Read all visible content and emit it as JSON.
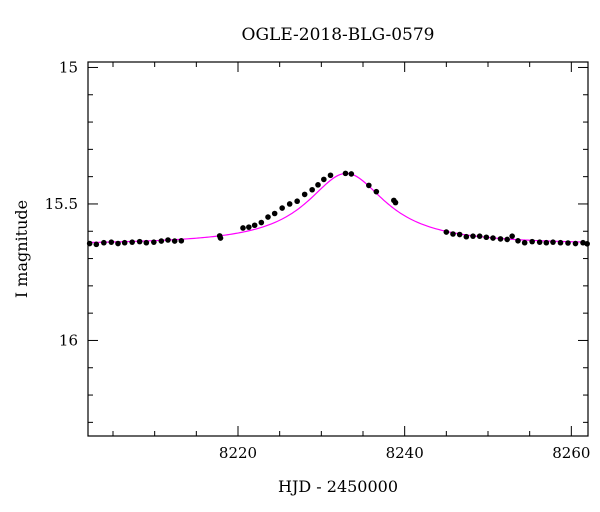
{
  "chart_data": {
    "type": "scatter",
    "title": "OGLE-2018-BLG-0579",
    "xlabel": "HJD - 2450000",
    "ylabel": "I magnitude",
    "xlim": [
      8202,
      8262
    ],
    "ylim": [
      16.35,
      14.98
    ],
    "y_inverted": true,
    "grid": false,
    "x_ticks": [
      8220,
      8240,
      8260
    ],
    "y_ticks": [
      15,
      15.5,
      16
    ],
    "x_minor_step": 5,
    "y_minor_step": 0.1,
    "colors": {
      "points": "#000000",
      "model": "#ff00ff"
    },
    "series": [
      {
        "kind": "points",
        "x": [
          8202.2,
          8203.0,
          8203.9,
          8204.8,
          8205.6,
          8206.4,
          8207.3,
          8208.2,
          8209.0,
          8209.9,
          8210.8,
          8211.6,
          8212.4,
          8213.2,
          8217.8,
          8217.9,
          8220.6,
          8221.3,
          8222.0,
          8222.8,
          8223.6,
          8224.4,
          8225.3,
          8226.2,
          8227.1,
          8228.0,
          8228.9,
          8229.6,
          8230.3,
          8231.1,
          8232.9,
          8233.6,
          8235.7,
          8236.6,
          8238.7,
          8238.9,
          8245.0,
          8245.8,
          8246.6,
          8247.4,
          8248.2,
          8249.0,
          8249.8,
          8250.6,
          8251.5,
          8252.3,
          8252.9,
          8253.6,
          8254.4,
          8255.3,
          8256.2,
          8257.0,
          8257.8,
          8258.7,
          8259.6,
          8260.5,
          8261.4,
          8261.9
        ],
        "y": [
          15.645,
          15.648,
          15.642,
          15.64,
          15.645,
          15.642,
          15.64,
          15.638,
          15.642,
          15.64,
          15.636,
          15.632,
          15.636,
          15.635,
          15.617,
          15.625,
          15.588,
          15.585,
          15.578,
          15.568,
          15.548,
          15.535,
          15.515,
          15.5,
          15.49,
          15.465,
          15.448,
          15.43,
          15.41,
          15.395,
          15.388,
          15.39,
          15.432,
          15.455,
          15.487,
          15.495,
          15.603,
          15.61,
          15.612,
          15.62,
          15.618,
          15.618,
          15.622,
          15.625,
          15.628,
          15.63,
          15.618,
          15.635,
          15.642,
          15.638,
          15.64,
          15.642,
          15.64,
          15.642,
          15.643,
          15.645,
          15.642,
          15.646
        ]
      },
      {
        "kind": "model",
        "baseline": 15.65,
        "peak_x": 8233.0,
        "peak_y": 15.388,
        "width": 5.8
      }
    ]
  }
}
